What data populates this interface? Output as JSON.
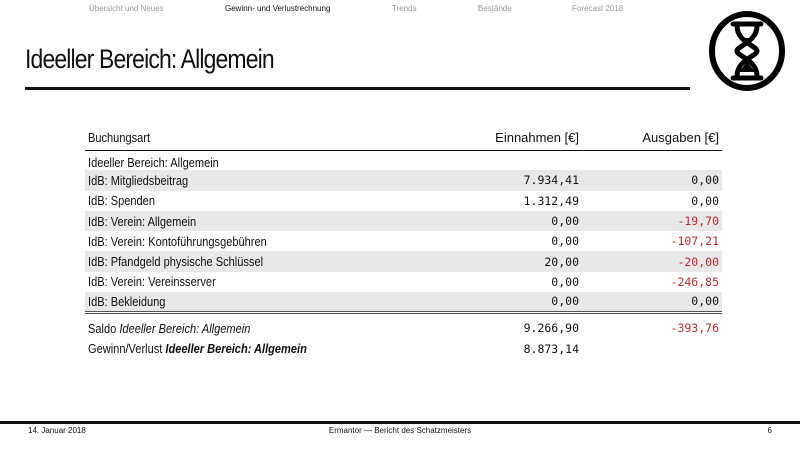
{
  "nav": {
    "items": [
      "Übersicht und Neues",
      "Gewinn- und Verlustrechnung",
      "Trends",
      "Bestände",
      "Forecast 2018"
    ],
    "active_index": 1
  },
  "slide": {
    "title": "Ideeller Bereich: Allgemein"
  },
  "logo": {
    "icon": "hourglass-circle-logo"
  },
  "table": {
    "headers": [
      "Buchungsart",
      "Einnahmen [€]",
      "Ausgaben [€]"
    ],
    "group": "Ideeller Bereich: Allgemein",
    "rows": [
      {
        "label": "IdB: Mitgliedsbeitrag",
        "in": "7.934,41",
        "out": "0,00"
      },
      {
        "label": "IdB: Spenden",
        "in": "1.312,49",
        "out": "0,00"
      },
      {
        "label": "IdB: Verein: Allgemein",
        "in": "0,00",
        "out": "-19,70"
      },
      {
        "label": "IdB: Verein: Kontoführungsgebühren",
        "in": "0,00",
        "out": "-107,21"
      },
      {
        "label": "IdB: Pfandgeld physische Schlüssel",
        "in": "20,00",
        "out": "-20,00"
      },
      {
        "label": "IdB: Verein: Vereinsserver",
        "in": "0,00",
        "out": "-246,85"
      },
      {
        "label": "IdB: Bekleidung",
        "in": "0,00",
        "out": "0,00"
      }
    ],
    "saldo": {
      "prefix": "Saldo",
      "name": "Ideeller Bereich: Allgemein",
      "in": "9.266,90",
      "out": "-393,76"
    },
    "gewinn": {
      "prefix": "Gewinn/Verlust",
      "name": "Ideeller Bereich: Allgemein",
      "in": "8.873,14"
    }
  },
  "colors": {
    "negative": "#c0282d",
    "stripe": "#e8e8e8"
  },
  "footer": {
    "date": "14. Januar 2018",
    "center": "Ermantor — Bericht des Schatzmeisters",
    "page": "6"
  }
}
